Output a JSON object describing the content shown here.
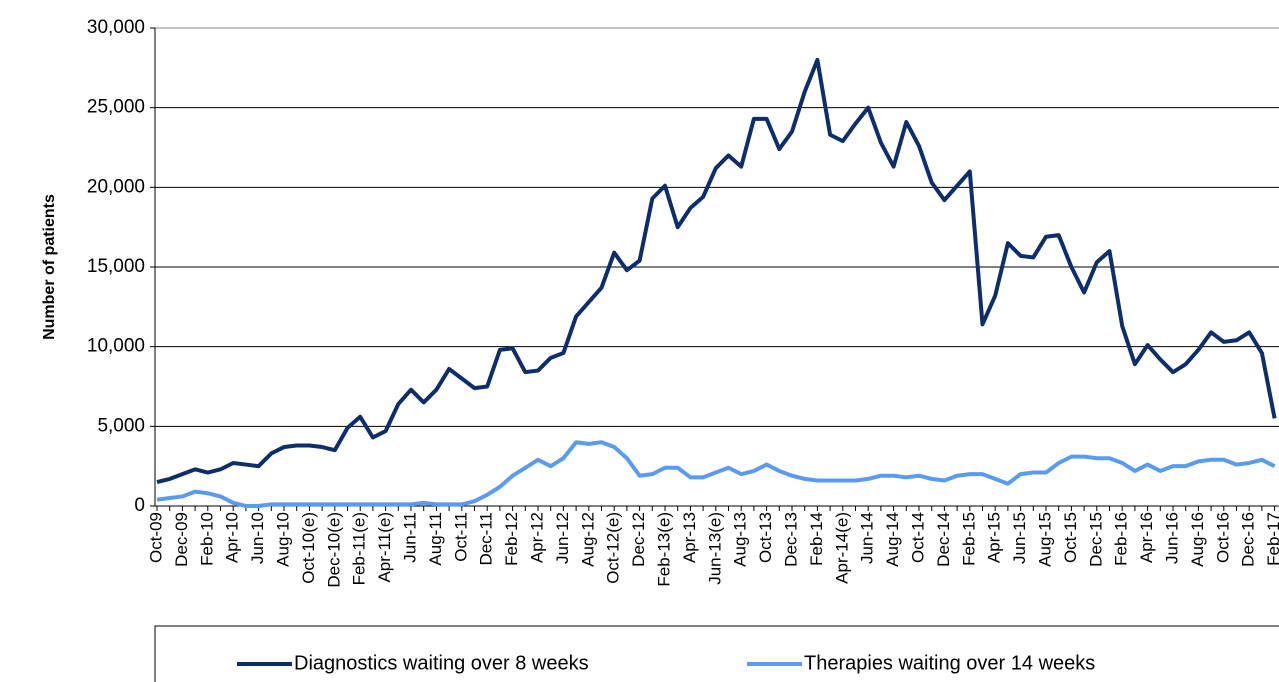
{
  "chart_data": {
    "type": "line",
    "ylabel": "Number of patients",
    "categories": [
      "Oct-09",
      null,
      "Dec-09",
      null,
      "Feb-10",
      null,
      "Apr-10",
      null,
      "Jun-10",
      null,
      "Aug-10",
      null,
      "Oct-10(e)",
      null,
      "Dec-10(e)",
      null,
      "Feb-11(e)",
      null,
      "Apr-11(e)",
      null,
      "Jun-11",
      null,
      "Aug-11",
      null,
      "Oct-11",
      null,
      "Dec-11",
      null,
      "Feb-12",
      null,
      "Apr-12",
      null,
      "Jun-12",
      null,
      "Aug-12",
      null,
      "Oct-12(e)",
      null,
      "Dec-12",
      null,
      "Feb-13(e)",
      null,
      "Apr-13",
      null,
      "Jun-13(e)",
      null,
      "Aug-13",
      null,
      "Oct-13",
      null,
      "Dec-13",
      null,
      "Feb-14",
      null,
      "Apr-14(e)",
      null,
      "Jun-14",
      null,
      "Aug-14",
      null,
      "Oct-14",
      null,
      "Dec-14",
      null,
      "Feb-15",
      null,
      "Apr-15",
      null,
      "Jun-15",
      null,
      "Aug-15",
      null,
      "Oct-15",
      null,
      "Dec-15",
      null,
      "Feb-16",
      null,
      "Apr-16",
      null,
      "Jun-16",
      null,
      "Aug-16",
      null,
      "Oct-16",
      null,
      "Dec-16",
      null,
      "Feb-17"
    ],
    "series": [
      {
        "name": "Diagnostics waiting over 8 weeks",
        "color": "#0d2d6b",
        "values": [
          1500,
          1700,
          2000,
          2300,
          2100,
          2300,
          2700,
          2600,
          2500,
          3300,
          3700,
          3800,
          3800,
          3700,
          3500,
          4900,
          5600,
          4300,
          4700,
          6400,
          7300,
          6500,
          7300,
          8600,
          8000,
          7400,
          7500,
          9800,
          9900,
          8400,
          8500,
          9300,
          9600,
          11900,
          12800,
          13700,
          15900,
          14800,
          15400,
          19300,
          20100,
          17500,
          18700,
          19400,
          21200,
          22000,
          21300,
          24300,
          24300,
          22400,
          23500,
          26000,
          28000,
          23300,
          22900,
          24000,
          25000,
          22800,
          21300,
          24100,
          22600,
          20300,
          19200,
          20100,
          21000,
          11400,
          13200,
          16500,
          15700,
          15600,
          16900,
          17000,
          15000,
          13400,
          15300,
          16000,
          11300,
          8900,
          10100,
          9200,
          8400,
          8900,
          9800,
          10900,
          10300,
          10400,
          10900,
          9600,
          5500
        ]
      },
      {
        "name": "Therapies waiting over 14 weeks",
        "color": "#5b9bef",
        "values": [
          400,
          500,
          600,
          900,
          800,
          600,
          200,
          0,
          0,
          100,
          100,
          100,
          100,
          100,
          100,
          100,
          100,
          100,
          100,
          100,
          100,
          200,
          100,
          100,
          100,
          300,
          700,
          1200,
          1900,
          2400,
          2900,
          2500,
          3000,
          4000,
          3900,
          4000,
          3700,
          3000,
          1900,
          2000,
          2400,
          2400,
          1800,
          1800,
          2100,
          2400,
          2000,
          2200,
          2600,
          2200,
          1900,
          1700,
          1600,
          1600,
          1600,
          1600,
          1700,
          1900,
          1900,
          1800,
          1900,
          1700,
          1600,
          1900,
          2000,
          2000,
          1700,
          1400,
          2000,
          2100,
          2100,
          2700,
          3100,
          3100,
          3000,
          3000,
          2700,
          2200,
          2600,
          2200,
          2500,
          2500,
          2800,
          2900,
          2900,
          2600,
          2700,
          2900,
          2500
        ]
      }
    ],
    "ylim": [
      0,
      30000
    ],
    "yticks": [
      0,
      {
        "value": 5000,
        "label": "5,000"
      },
      {
        "value": 10000,
        "label": "10,000"
      },
      {
        "value": 15000,
        "label": "15,000"
      },
      {
        "value": 20000,
        "label": "20,000"
      },
      {
        "value": 25000,
        "label": "25,000"
      },
      {
        "value": 30000,
        "label": "30,000"
      }
    ],
    "grid": true,
    "legend": "bottom"
  }
}
